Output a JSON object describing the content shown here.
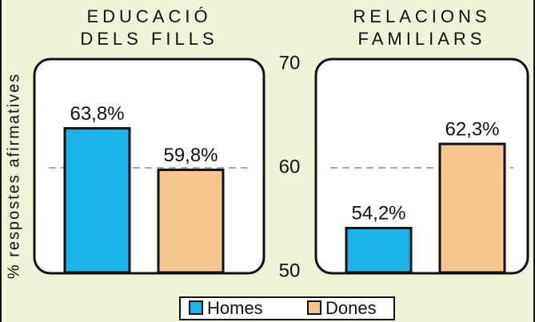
{
  "chart_data": {
    "type": "bar",
    "ylabel": "% respostes afirmatives",
    "categories": [
      [
        "EDUCACIÓ",
        "DELS FILLS"
      ],
      [
        "RELACIONS",
        "FAMILIARS"
      ]
    ],
    "series": [
      {
        "name": "Homes",
        "color": "#1ab4e8",
        "values": [
          63.8,
          54.2
        ],
        "value_labels": [
          "63,8%",
          "54,2%"
        ]
      },
      {
        "name": "Dones",
        "color": "#f9c58e",
        "values": [
          59.8,
          62.3
        ],
        "value_labels": [
          "59,8%",
          "62,3%"
        ]
      }
    ],
    "ylim": [
      50,
      70
    ],
    "yticks": [
      50,
      60,
      70
    ],
    "grid": true,
    "legend": "bottom"
  }
}
